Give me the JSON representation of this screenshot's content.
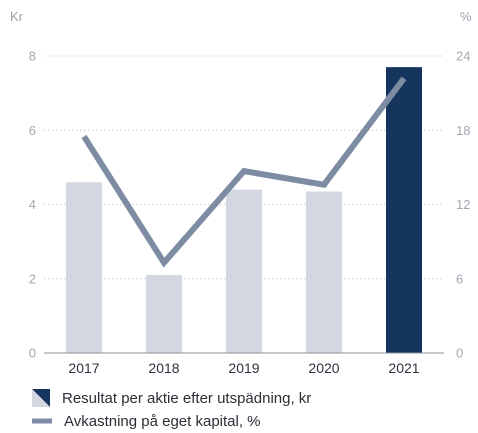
{
  "chart_data": {
    "type": "bar",
    "categories": [
      "2017",
      "2018",
      "2019",
      "2020",
      "2021"
    ],
    "series": [
      {
        "name": "Resultat per aktie efter utspädning, kr",
        "kind": "bar",
        "axis": "left",
        "values": [
          4.6,
          2.1,
          4.4,
          4.35,
          7.7
        ]
      },
      {
        "name": "Avkastning på eget kapital, %",
        "kind": "line",
        "axis": "right",
        "values": [
          17.5,
          7.3,
          14.7,
          13.6,
          22.2
        ]
      }
    ],
    "left_axis": {
      "unit": "Kr",
      "ylim": [
        0,
        8
      ],
      "ticks": [
        "0",
        "2",
        "4",
        "6",
        "8"
      ]
    },
    "right_axis": {
      "unit": "%",
      "ylim": [
        0,
        24
      ],
      "ticks": [
        "0",
        "6",
        "12",
        "18",
        "24"
      ]
    },
    "grid": "dotted horizontal",
    "legend_position": "bottom-left",
    "colors": {
      "bar": "#d3d8e0",
      "bar_highlight": "#16355e",
      "line": "#7d8ba3",
      "grid": "#c9cdd3",
      "tick_label": "#a3a9b2",
      "category_label": "#2f3540"
    }
  }
}
